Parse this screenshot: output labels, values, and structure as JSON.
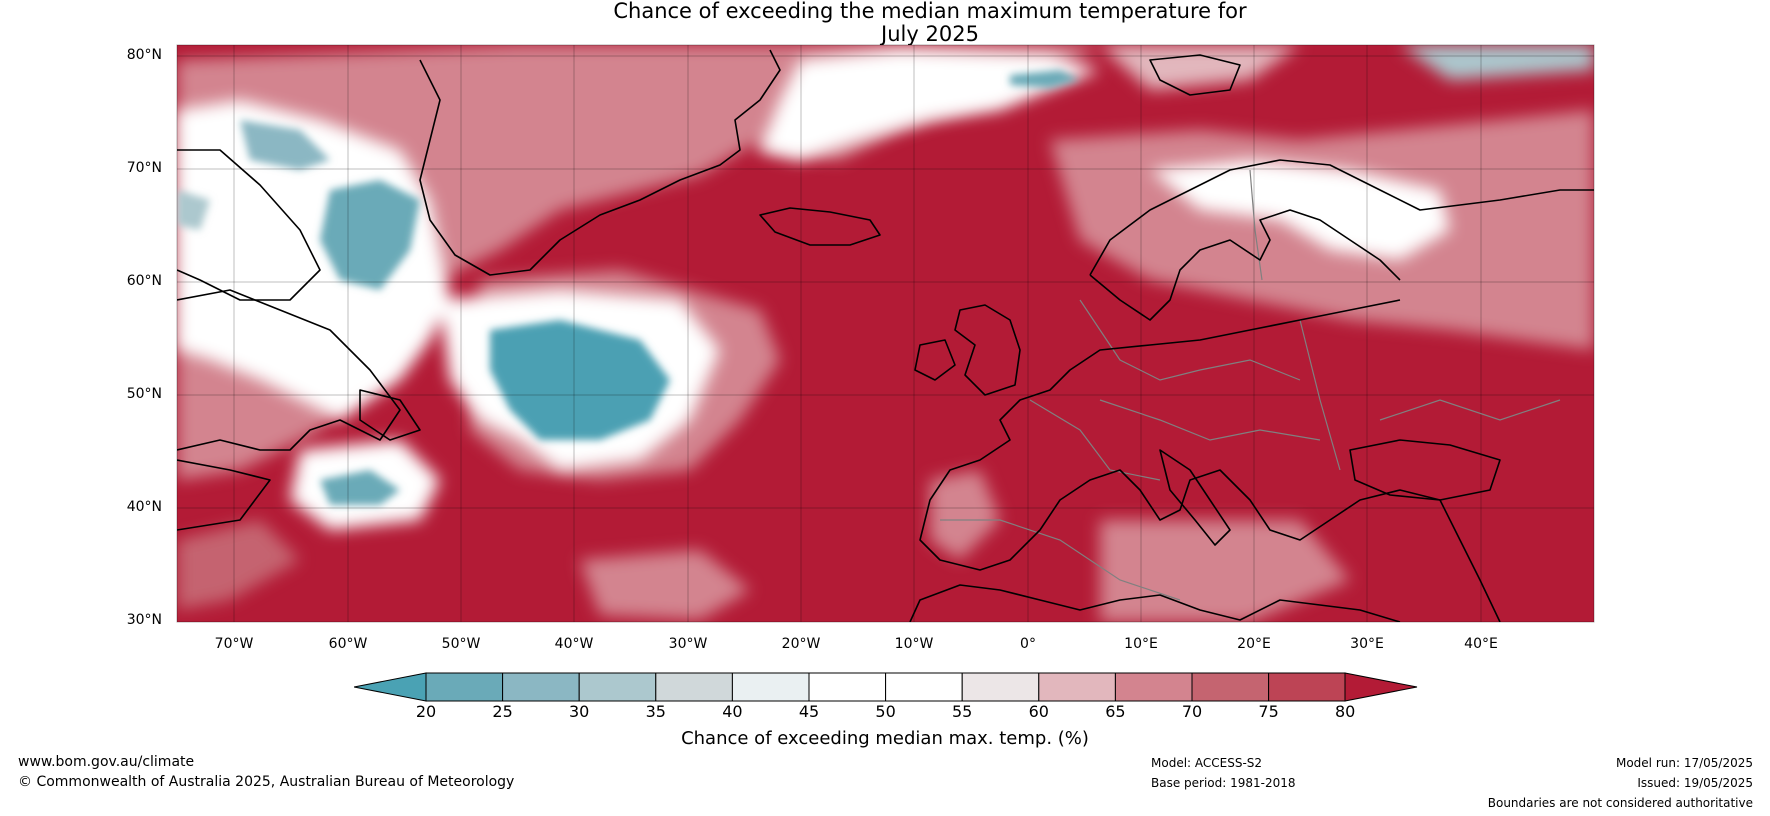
{
  "title": {
    "line1": "Chance of exceeding the median maximum temperature for",
    "line2": "July 2025"
  },
  "map": {
    "lat_labels": [
      "80°N",
      "70°N",
      "60°N",
      "50°N",
      "40°N",
      "30°N"
    ],
    "lon_labels": [
      "70°W",
      "60°W",
      "50°W",
      "40°W",
      "30°W",
      "20°W",
      "10°W",
      "0°",
      "10°E",
      "20°E",
      "30°E",
      "40°E"
    ],
    "extent": {
      "lon_min": -75,
      "lon_max": 50,
      "lat_min": 30,
      "lat_max": 81
    },
    "colors": {
      "high": "#b31b36",
      "low": "#4ba0b3",
      "neutral": "#ffffff",
      "coast": "#000000",
      "border": "#808080"
    }
  },
  "colorbar": {
    "ticks": [
      "20",
      "25",
      "30",
      "35",
      "40",
      "45",
      "50",
      "55",
      "60",
      "65",
      "70",
      "75",
      "80"
    ],
    "colors": [
      "#4aa2b4",
      "#6aaab8",
      "#8bb7c3",
      "#acc8ce",
      "#d0d8da",
      "#eaf0f2",
      "#ffffff",
      "#ffffff",
      "#ece6e7",
      "#e2b7bd",
      "#d3848f",
      "#c56470",
      "#bd4455",
      "#b31b36"
    ],
    "label": "Chance of exceeding median max. temp. (%)"
  },
  "footer": {
    "website": "www.bom.gov.au/climate",
    "copyright": "© Commonwealth of Australia 2025, Australian Bureau of Meteorology",
    "model": "Model: ACCESS-S2",
    "base_period": "Base period: 1981-2018",
    "model_run": "Model run: 17/05/2025",
    "issued": "Issued: 19/05/2025",
    "disclaimer": "Boundaries are not considered authoritative"
  }
}
